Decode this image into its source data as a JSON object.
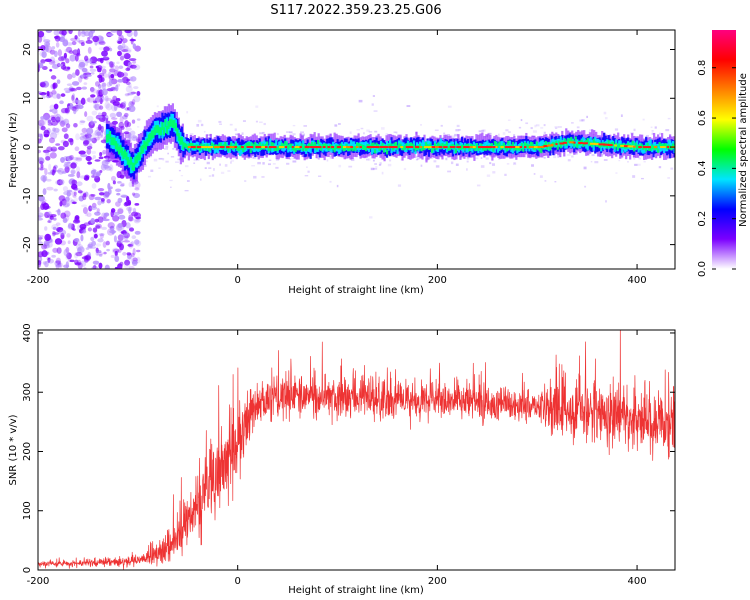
{
  "title": "S117.2022.359.23.25.G06",
  "chart_data": [
    {
      "type": "heatmap",
      "xlabel": "Height of straight line (km)",
      "ylabel": "Frequency (Hz)",
      "xlim": [
        -200,
        438
      ],
      "ylim": [
        -25,
        24
      ],
      "x_ticks": [
        "-200",
        "0",
        "200",
        "400"
      ],
      "y_ticks": [
        "20",
        "10",
        "0",
        "-10",
        "-20"
      ],
      "x_tick_values": [
        -200,
        0,
        200,
        400
      ],
      "y_tick_values": [
        20,
        10,
        0,
        -10,
        -20
      ],
      "colorbar": {
        "label": "Normalized spectral amplitude",
        "range": [
          0,
          0.95
        ],
        "ticks": [
          "0.0",
          "0.2",
          "0.4",
          "0.6",
          "0.8"
        ],
        "tick_values": [
          0,
          0.2,
          0.4,
          0.6,
          0.8
        ],
        "colormap": [
          "#ffffff",
          "#7b00ff",
          "#0000ff",
          "#00e5ff",
          "#00ff00",
          "#ffff00",
          "#ff8000",
          "#ff0000",
          "#ff007f"
        ]
      },
      "ridge": {
        "x": [
          -130,
          -120,
          -110,
          -105,
          -95,
          -85,
          -75,
          -65,
          -58,
          -50,
          -30,
          0,
          100,
          200,
          300,
          330,
          400,
          438
        ],
        "freq": [
          2,
          0,
          -3,
          -4,
          0,
          3,
          4,
          5,
          1,
          0,
          0,
          0,
          0,
          0,
          0,
          1,
          0,
          0
        ]
      },
      "noise_region_x": [
        -200,
        -105
      ]
    },
    {
      "type": "line",
      "xlabel": "Height of straight line (km)",
      "ylabel": "SNR (10 * v/v)",
      "xlim": [
        -200,
        438
      ],
      "ylim": [
        0,
        405
      ],
      "x_ticks": [
        "-200",
        "0",
        "200",
        "400"
      ],
      "y_ticks": [
        "400",
        "300",
        "200",
        "100",
        "0"
      ],
      "x_tick_values": [
        -200,
        0,
        200,
        400
      ],
      "y_tick_values": [
        400,
        300,
        200,
        100,
        0
      ],
      "line_color": "#ee3333",
      "envelope": {
        "x": [
          -200,
          -150,
          -100,
          -80,
          -60,
          -40,
          -20,
          0,
          10,
          20,
          40,
          100,
          200,
          300,
          340,
          400,
          438
        ],
        "mean": [
          10,
          12,
          15,
          25,
          60,
          110,
          160,
          210,
          250,
          280,
          295,
          290,
          285,
          275,
          270,
          255,
          245
        ],
        "spread": [
          4,
          5,
          8,
          15,
          35,
          50,
          55,
          60,
          45,
          30,
          30,
          30,
          28,
          28,
          45,
          50,
          60
        ]
      }
    }
  ]
}
